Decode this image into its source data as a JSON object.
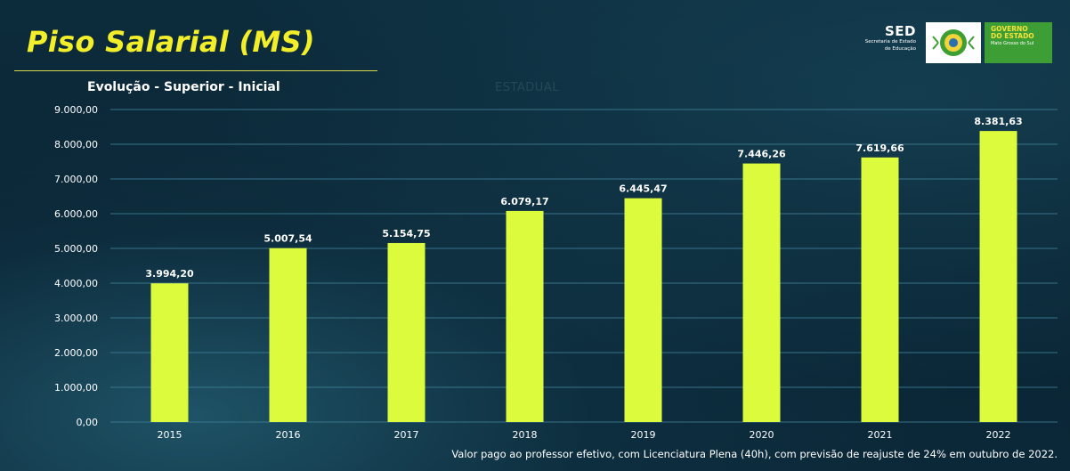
{
  "header": {
    "title": "Piso Salarial (MS)",
    "subtitle": "Evolução - Superior - Inicial",
    "watermark": "ESTADUAL"
  },
  "logos": {
    "sed_acronym": "SED",
    "sed_line1": "Secretaria de Estado",
    "sed_line2": "de Educação",
    "gov_line1": "GOVERNO",
    "gov_line2": "DO ESTADO",
    "gov_line3": "Mato Grosso do Sul"
  },
  "footnote": "Valor pago ao professor efetivo, com Licenciatura Plena (40h), com previsão de reajuste de 24% em outubro de 2022.",
  "colors": {
    "bar": "#dbfb3c",
    "title": "#f3ee2a",
    "gridline": "#3f7f96",
    "text": "#ffffff"
  },
  "chart_data": {
    "type": "bar",
    "title": "Evolução - Superior - Inicial",
    "xlabel": "",
    "ylabel": "",
    "categories": [
      "2015",
      "2016",
      "2017",
      "2018",
      "2019",
      "2020",
      "2021",
      "2022"
    ],
    "values": [
      3994.2,
      5007.54,
      5154.75,
      6079.17,
      6445.47,
      7446.26,
      7619.66,
      8381.63
    ],
    "value_labels": [
      "3.994,20",
      "5.007,54",
      "5.154,75",
      "6.079,17",
      "6.445,47",
      "7.446,26",
      "7.619,66",
      "8.381,63"
    ],
    "y_ticks": [
      0,
      1000,
      2000,
      3000,
      4000,
      5000,
      6000,
      7000,
      8000,
      9000
    ],
    "y_tick_labels": [
      "0,00",
      "1.000,00",
      "2.000,00",
      "3.000,00",
      "4.000,00",
      "5.000,00",
      "6.000,00",
      "7.000,00",
      "8.000,00",
      "9.000,00"
    ],
    "ylim": [
      0,
      9000
    ],
    "grid": true,
    "legend": "none"
  }
}
